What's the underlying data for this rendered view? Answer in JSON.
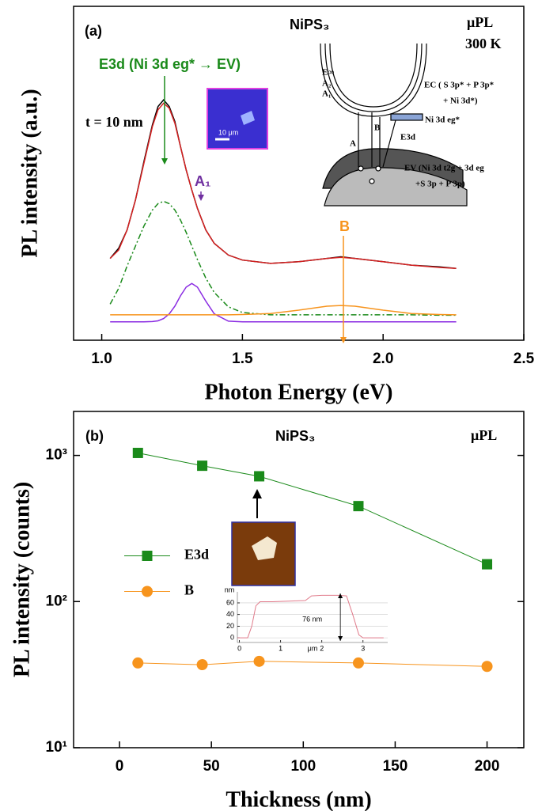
{
  "chart_data": [
    {
      "type": "line",
      "panel_label": "(a)",
      "title": "NiPS₃",
      "method": "μPL",
      "temperature": "300 K",
      "thickness": "t = 10 nm",
      "xlabel": "Photon Energy (eV)",
      "ylabel": "PL intensity (a.u.)",
      "xlim": [
        0.9,
        2.5
      ],
      "xticks": [
        {
          "value": 1,
          "label": "1.0"
        },
        1.5,
        {
          "value": 2,
          "label": "2.0"
        },
        2.5
      ],
      "ylim": [
        0,
        100
      ],
      "x": [
        1.03,
        1.06,
        1.09,
        1.12,
        1.15,
        1.18,
        1.2,
        1.22,
        1.24,
        1.26,
        1.28,
        1.3,
        1.32,
        1.34,
        1.37,
        1.4,
        1.45,
        1.5,
        1.6,
        1.7,
        1.8,
        1.85,
        1.9,
        2.0,
        2.1,
        2.2,
        2.26
      ],
      "series": [
        {
          "color": "#000000",
          "values": [
            24.5,
            27.5,
            33,
            42,
            53.5,
            64.5,
            70,
            72,
            70,
            65.5,
            58,
            51,
            45,
            39.5,
            33,
            29,
            25.5,
            24,
            23,
            23.5,
            24.5,
            25,
            24.5,
            23.5,
            22.5,
            22,
            21.5
          ]
        },
        {
          "color": "#d62020",
          "values": [
            24.5,
            27,
            33,
            42,
            53,
            64,
            69,
            71,
            69.5,
            65,
            58,
            51,
            45,
            39.5,
            33,
            29,
            25.5,
            24,
            23,
            23.5,
            24.5,
            24.8,
            24.5,
            23.5,
            22.5,
            21.8,
            21.5
          ]
        },
        {
          "color": "#1a8a1a",
          "dash": "dash-dot",
          "values": [
            10.8,
            15.5,
            22.2,
            28.2,
            34.2,
            39.0,
            40.9,
            41.6,
            40.9,
            39.0,
            36.0,
            32.3,
            28.2,
            24.2,
            18.6,
            14.3,
            10.0,
            8.3,
            7.6,
            7.6,
            7.6,
            7.6,
            7.6,
            7.6,
            7.6,
            7.5,
            7.5
          ]
        },
        {
          "color": "#8a2be2",
          "values": [
            5.5,
            5.5,
            5.5,
            5.5,
            5.5,
            5.6,
            5.8,
            6.5,
            7.9,
            10.2,
            13.3,
            15.9,
            17.0,
            15.9,
            11.7,
            7.9,
            5.7,
            5.5,
            5.5,
            5.5,
            5.5,
            5.5,
            5.5,
            5.5,
            5.5,
            5.5,
            5.5
          ]
        },
        {
          "color": "#f7941d",
          "values": [
            7.6,
            7.6,
            7.6,
            7.6,
            7.6,
            7.6,
            7.6,
            7.6,
            7.6,
            7.6,
            7.6,
            7.6,
            7.6,
            7.6,
            7.6,
            7.6,
            7.6,
            7.7,
            8.0,
            9.0,
            10.2,
            10.4,
            10.2,
            9.0,
            8.0,
            7.7,
            7.6
          ]
        }
      ],
      "peak_labels": [
        {
          "text": "E3d (Ni 3d eg* → EV)",
          "color": "#1a8a1a"
        },
        {
          "text": "A₁",
          "color": "#7030a0"
        },
        {
          "text": "B",
          "color": "#f7941d"
        }
      ],
      "inset_scale": "10 μm",
      "diagram_labels": [
        "E∞",
        "A₂",
        "A₁",
        "EC ( S 3p* + P 3p*",
        "+ Ni 3d*)",
        "Ni 3d eg*",
        "E3d",
        "A",
        "B",
        "EV (Ni 3d t2g + 3d eg",
        "+S 3p + P 3p)"
      ]
    },
    {
      "type": "line",
      "panel_label": "(b)",
      "title": "NiPS₃",
      "method": "μPL",
      "xlabel": "Thickness (nm)",
      "ylabel": "PL intensity (counts)",
      "xlim": [
        -25,
        220
      ],
      "xticks": [
        0,
        50,
        100,
        150,
        200
      ],
      "yscale": "log",
      "ylim": [
        10,
        2000
      ],
      "yticks": [
        {
          "value": 10,
          "label": "10¹"
        },
        {
          "value": 100,
          "label": "10²"
        },
        {
          "value": 1000,
          "label": "10³"
        }
      ],
      "legend": "center-left",
      "x": [
        10,
        45,
        76,
        130,
        200
      ],
      "series": [
        {
          "name": "E3d",
          "color": "#1a8a1a",
          "marker": "square",
          "values": [
            1040,
            850,
            720,
            450,
            180
          ]
        },
        {
          "name": "B",
          "color": "#f7941d",
          "marker": "circle",
          "values": [
            38,
            37,
            39,
            38,
            36
          ]
        }
      ]
    },
    {
      "type": "line",
      "xlabel": "μm",
      "ylabel": "nm",
      "annotation": "76 nm",
      "xlim": [
        -0.05,
        3.6
      ],
      "xticks": [
        0,
        1,
        2,
        3
      ],
      "ylim": [
        -8,
        79
      ],
      "yticks": [
        0,
        20,
        40,
        60
      ],
      "grid": true,
      "x": [
        -0.05,
        0.2,
        0.3,
        0.4,
        0.5,
        0.8,
        1.2,
        1.6,
        1.75,
        2.0,
        2.4,
        2.6,
        2.75,
        2.9,
        3.0,
        3.5
      ],
      "series": [
        {
          "color": "#e07a8a",
          "values": [
            0,
            0,
            20,
            55,
            62,
            62,
            63,
            64,
            72,
            73,
            73,
            72,
            40,
            5,
            0,
            0
          ]
        }
      ]
    }
  ]
}
